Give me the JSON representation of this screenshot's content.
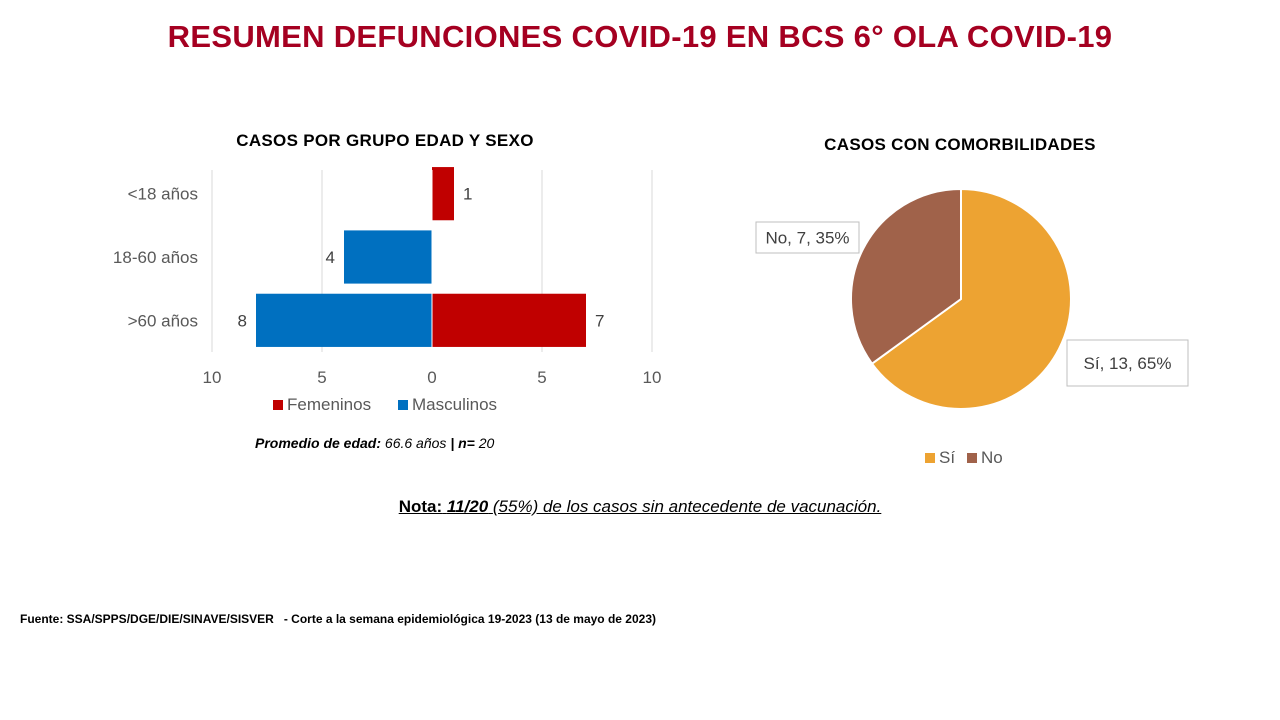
{
  "title": "RESUMEN DEFUNCIONES COVID-19 EN BCS 6° OLA COVID-19",
  "summary": {
    "avg_label": "Promedio de edad:",
    "avg_value": "66.6 años",
    "separator": "|",
    "n_label": "n=",
    "n_value": "20"
  },
  "note": {
    "label": "Nota:",
    "fraction": "11/20",
    "text": "(55%) de los casos sin antecedente de vacunación."
  },
  "source": "Fuente: SSA/SPPS/DGE/DIE/SINAVE/SISVER   - Corte a la semana epidemiológica 19-2023 (13 de mayo de 2023)",
  "colors": {
    "title": "#a50021",
    "femeninos": "#c00000",
    "masculinos": "#0070c0",
    "si": "#eda332",
    "no": "#a0624a"
  },
  "chart_data": [
    {
      "type": "bar",
      "orientation": "horizontal",
      "title": "CASOS POR GRUPO EDAD Y SEXO",
      "categories": [
        "<18 años",
        "18-60 años",
        ">60 años"
      ],
      "series": [
        {
          "name": "Femeninos",
          "values": [
            1,
            0,
            7
          ]
        },
        {
          "name": "Masculinos",
          "values": [
            0,
            4,
            8
          ]
        }
      ],
      "xlim": [
        -10,
        10
      ],
      "xticks": [
        -10,
        -5,
        0,
        5,
        10
      ],
      "xtick_labels": [
        "10",
        "5",
        "0",
        "5",
        "10"
      ],
      "grid": true,
      "legend": "bottom"
    },
    {
      "type": "pie",
      "title": "CASOS CON COMORBILIDADES",
      "labels": [
        "Sí",
        "No"
      ],
      "values": [
        13,
        7
      ],
      "percentages": [
        65,
        35
      ],
      "data_labels": [
        "Sí, 13, 65%",
        "No, 7, 35%"
      ],
      "legend": "bottom"
    }
  ]
}
